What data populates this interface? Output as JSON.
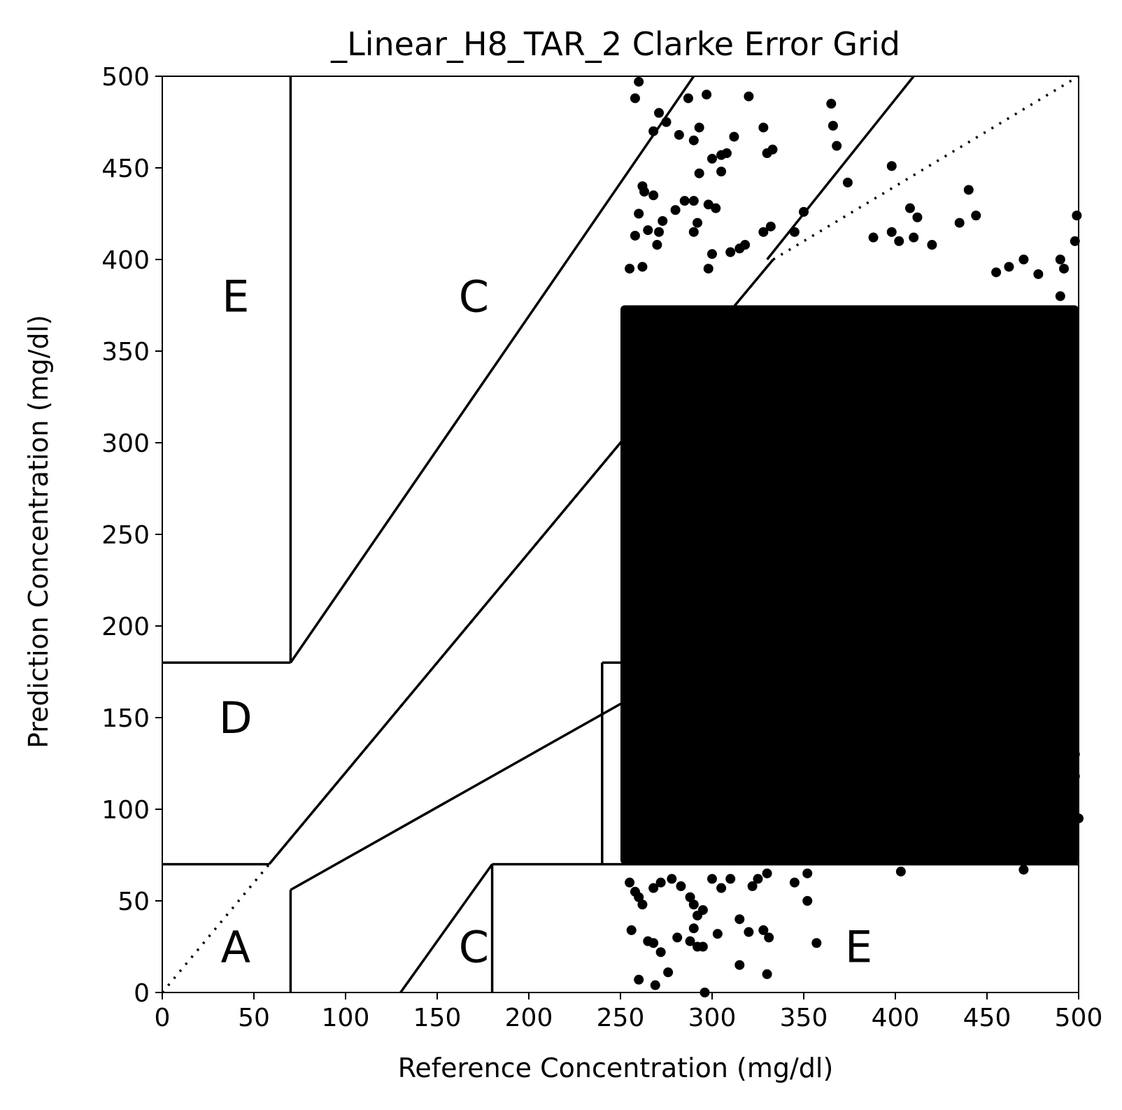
{
  "chart_data": {
    "type": "scatter",
    "title": "_Linear_H8_TAR_2 Clarke Error Grid",
    "xlabel": "Reference Concentration (mg/dl)",
    "ylabel": "Prediction Concentration (mg/dl)",
    "xlim": [
      0,
      500
    ],
    "ylim": [
      0,
      500
    ],
    "xticks": [
      "0",
      "50",
      "100",
      "150",
      "200",
      "250",
      "300",
      "350",
      "400",
      "450",
      "500"
    ],
    "yticks": [
      "0",
      "50",
      "100",
      "150",
      "200",
      "250",
      "300",
      "350",
      "400",
      "450",
      "500"
    ],
    "grid": false,
    "legend": "none",
    "marker_color": "#000000",
    "zone_labels": [
      {
        "text": "E",
        "x": 40,
        "y": 380
      },
      {
        "text": "C",
        "x": 170,
        "y": 380
      },
      {
        "text": "D",
        "x": 40,
        "y": 150
      },
      {
        "text": "A",
        "x": 40,
        "y": 25
      },
      {
        "text": "C",
        "x": 170,
        "y": 25
      },
      {
        "text": "E",
        "x": 380,
        "y": 25
      }
    ],
    "dense_region": {
      "x": [
        250,
        500
      ],
      "y": [
        70,
        375
      ]
    },
    "points": [
      [
        258,
        488
      ],
      [
        260,
        497
      ],
      [
        262,
        440
      ],
      [
        263,
        437
      ],
      [
        260,
        425
      ],
      [
        258,
        413
      ],
      [
        255,
        395
      ],
      [
        262,
        396
      ],
      [
        268,
        470
      ],
      [
        271,
        480
      ],
      [
        275,
        475
      ],
      [
        268,
        435
      ],
      [
        273,
        421
      ],
      [
        271,
        415
      ],
      [
        265,
        416
      ],
      [
        270,
        408
      ],
      [
        282,
        468
      ],
      [
        287,
        488
      ],
      [
        290,
        465
      ],
      [
        293,
        472
      ],
      [
        297,
        490
      ],
      [
        300,
        455
      ],
      [
        305,
        457
      ],
      [
        308,
        458
      ],
      [
        312,
        467
      ],
      [
        320,
        489
      ],
      [
        328,
        472
      ],
      [
        330,
        458
      ],
      [
        333,
        460
      ],
      [
        290,
        432
      ],
      [
        285,
        432
      ],
      [
        293,
        447
      ],
      [
        298,
        430
      ],
      [
        302,
        428
      ],
      [
        280,
        427
      ],
      [
        292,
        420
      ],
      [
        290,
        415
      ],
      [
        298,
        395
      ],
      [
        305,
        448
      ],
      [
        300,
        403
      ],
      [
        310,
        404
      ],
      [
        315,
        406
      ],
      [
        318,
        408
      ],
      [
        328,
        415
      ],
      [
        332,
        418
      ],
      [
        345,
        415
      ],
      [
        350,
        426
      ],
      [
        365,
        485
      ],
      [
        366,
        473
      ],
      [
        368,
        462
      ],
      [
        374,
        442
      ],
      [
        398,
        451
      ],
      [
        388,
        412
      ],
      [
        398,
        415
      ],
      [
        402,
        410
      ],
      [
        408,
        428
      ],
      [
        412,
        423
      ],
      [
        410,
        412
      ],
      [
        420,
        408
      ],
      [
        435,
        420
      ],
      [
        440,
        438
      ],
      [
        444,
        424
      ],
      [
        455,
        393
      ],
      [
        462,
        396
      ],
      [
        470,
        400
      ],
      [
        478,
        392
      ],
      [
        490,
        400
      ],
      [
        492,
        395
      ],
      [
        499,
        424
      ],
      [
        498,
        410
      ],
      [
        490,
        380
      ],
      [
        495,
        370
      ],
      [
        255,
        60
      ],
      [
        258,
        55
      ],
      [
        260,
        52
      ],
      [
        262,
        48
      ],
      [
        268,
        57
      ],
      [
        272,
        60
      ],
      [
        278,
        62
      ],
      [
        283,
        58
      ],
      [
        288,
        52
      ],
      [
        290,
        48
      ],
      [
        292,
        42
      ],
      [
        295,
        45
      ],
      [
        300,
        62
      ],
      [
        305,
        57
      ],
      [
        310,
        62
      ],
      [
        322,
        58
      ],
      [
        325,
        62
      ],
      [
        330,
        65
      ],
      [
        345,
        60
      ],
      [
        352,
        65
      ],
      [
        352,
        50
      ],
      [
        256,
        34
      ],
      [
        265,
        28
      ],
      [
        268,
        27
      ],
      [
        272,
        22
      ],
      [
        276,
        11
      ],
      [
        260,
        7
      ],
      [
        269,
        4
      ],
      [
        281,
        30
      ],
      [
        288,
        28
      ],
      [
        290,
        35
      ],
      [
        292,
        25
      ],
      [
        295,
        25
      ],
      [
        303,
        32
      ],
      [
        315,
        40
      ],
      [
        320,
        33
      ],
      [
        328,
        34
      ],
      [
        331,
        30
      ],
      [
        330,
        10
      ],
      [
        357,
        27
      ],
      [
        315,
        15
      ],
      [
        296,
        0
      ],
      [
        403,
        66
      ],
      [
        470,
        67
      ],
      [
        440,
        180
      ],
      [
        445,
        190
      ],
      [
        450,
        175
      ],
      [
        455,
        185
      ],
      [
        460,
        190
      ],
      [
        465,
        185
      ],
      [
        470,
        180
      ],
      [
        475,
        192
      ],
      [
        480,
        183
      ],
      [
        485,
        195
      ],
      [
        490,
        183
      ],
      [
        495,
        178
      ],
      [
        442,
        160
      ],
      [
        447,
        152
      ],
      [
        452,
        145
      ],
      [
        458,
        140
      ],
      [
        463,
        150
      ],
      [
        468,
        162
      ],
      [
        472,
        158
      ],
      [
        478,
        148
      ],
      [
        483,
        160
      ],
      [
        488,
        142
      ],
      [
        493,
        138
      ],
      [
        498,
        130
      ],
      [
        420,
        165
      ],
      [
        425,
        158
      ],
      [
        430,
        150
      ],
      [
        435,
        145
      ],
      [
        440,
        138
      ],
      [
        445,
        130
      ],
      [
        450,
        125
      ],
      [
        455,
        118
      ],
      [
        460,
        112
      ],
      [
        465,
        120
      ],
      [
        470,
        113
      ],
      [
        475,
        110
      ],
      [
        480,
        128
      ],
      [
        485,
        105
      ],
      [
        488,
        85
      ],
      [
        495,
        100
      ],
      [
        498,
        118
      ],
      [
        500,
        95
      ],
      [
        430,
        126
      ],
      [
        435,
        118
      ],
      [
        440,
        110
      ],
      [
        445,
        105
      ],
      [
        450,
        98
      ],
      [
        455,
        92
      ],
      [
        460,
        103
      ],
      [
        415,
        135
      ],
      [
        418,
        125
      ],
      [
        422,
        118
      ],
      [
        425,
        112
      ],
      [
        428,
        105
      ],
      [
        432,
        100
      ],
      [
        436,
        95
      ],
      [
        412,
        108
      ],
      [
        405,
        95
      ],
      [
        410,
        85
      ],
      [
        408,
        120
      ],
      [
        400,
        110
      ],
      [
        395,
        100
      ],
      [
        390,
        92
      ],
      [
        385,
        88
      ],
      [
        380,
        82
      ],
      [
        378,
        95
      ],
      [
        372,
        87
      ],
      [
        365,
        80
      ],
      [
        360,
        85
      ],
      [
        355,
        78
      ],
      [
        350,
        82
      ],
      [
        340,
        80
      ],
      [
        335,
        76
      ],
      [
        346,
        88
      ],
      [
        358,
        93
      ]
    ]
  }
}
